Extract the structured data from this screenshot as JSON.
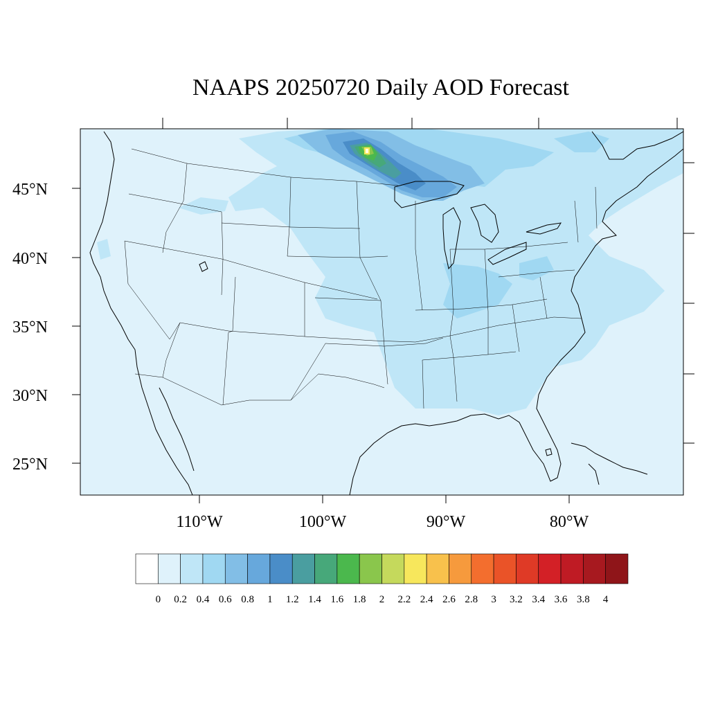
{
  "title": "NAAPS 20250720 Daily AOD Forecast",
  "map": {
    "lat_labels": [
      "45°N",
      "40°N",
      "35°N",
      "30°N",
      "25°N"
    ],
    "lon_labels": [
      "110°W",
      "100°W",
      "90°W",
      "80°W"
    ],
    "background_color": "#dff2fb"
  },
  "colorbar": {
    "levels": [
      "0",
      "0.2",
      "0.4",
      "0.6",
      "0.8",
      "1",
      "1.2",
      "1.4",
      "1.6",
      "1.8",
      "2",
      "2.2",
      "2.4",
      "2.6",
      "2.8",
      "3",
      "3.2",
      "3.4",
      "3.6",
      "3.8",
      "4"
    ],
    "colors": [
      "#ffffff",
      "#dff2fb",
      "#bfe6f7",
      "#a0d8f2",
      "#82bee6",
      "#67a8dc",
      "#4a8dc8",
      "#4a9ea0",
      "#47a87a",
      "#4bb84d",
      "#8ac64c",
      "#c5d95c",
      "#f7e75c",
      "#f8c14c",
      "#f69a3d",
      "#f36e2e",
      "#ea5328",
      "#df3a26",
      "#d32026",
      "#bf1b24",
      "#a7191f",
      "#8f1519"
    ]
  }
}
